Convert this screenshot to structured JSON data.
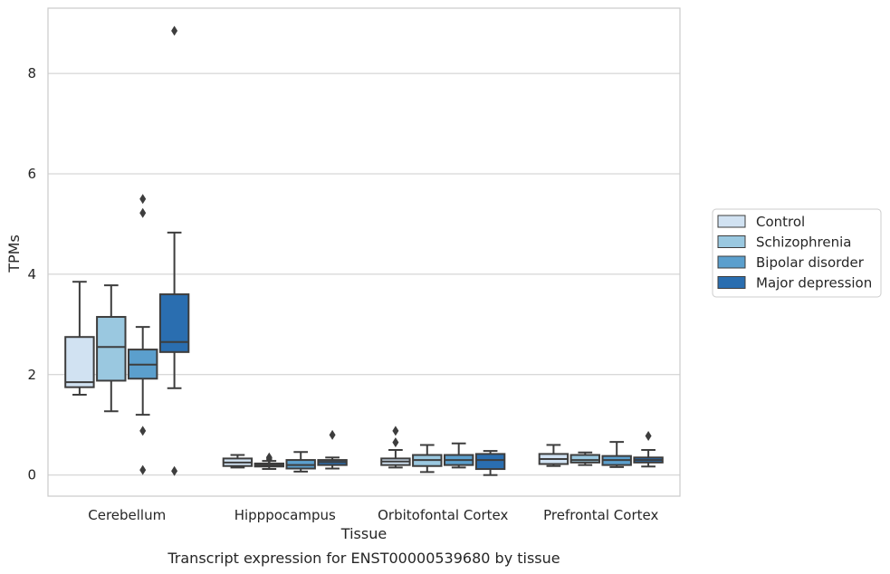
{
  "chart_data": {
    "type": "box",
    "caption": "Transcript expression for ENST00000539680 by tissue",
    "xlabel": "Tissue",
    "ylabel": "TPMs",
    "ylim": [
      -0.42,
      9.3
    ],
    "yticks": [
      0,
      2,
      4,
      6,
      8
    ],
    "grid": "horizontal",
    "legend_position": "right",
    "categories": [
      "Cerebellum",
      "Hipppocampus",
      "Orbitofontal Cortex",
      "Prefrontal Cortex"
    ],
    "series": [
      {
        "name": "Control",
        "color": "#d1e2f2",
        "boxes": [
          {
            "whislo": 1.6,
            "q1": 1.75,
            "med": 1.85,
            "q3": 2.75,
            "whishi": 3.85,
            "fliers": []
          },
          {
            "whislo": 0.15,
            "q1": 0.18,
            "med": 0.25,
            "q3": 0.33,
            "whishi": 0.4,
            "fliers": []
          },
          {
            "whislo": 0.15,
            "q1": 0.2,
            "med": 0.27,
            "q3": 0.33,
            "whishi": 0.5,
            "fliers": [
              0.65,
              0.88
            ]
          },
          {
            "whislo": 0.18,
            "q1": 0.22,
            "med": 0.32,
            "q3": 0.42,
            "whishi": 0.6,
            "fliers": []
          }
        ]
      },
      {
        "name": "Schizophrenia",
        "color": "#9ac8e0",
        "boxes": [
          {
            "whislo": 1.27,
            "q1": 1.88,
            "med": 2.55,
            "q3": 3.15,
            "whishi": 3.78,
            "fliers": []
          },
          {
            "whislo": 0.12,
            "q1": 0.17,
            "med": 0.2,
            "q3": 0.23,
            "whishi": 0.28,
            "fliers": [
              0.35,
              0.32
            ]
          },
          {
            "whislo": 0.06,
            "q1": 0.18,
            "med": 0.3,
            "q3": 0.4,
            "whishi": 0.6,
            "fliers": []
          },
          {
            "whislo": 0.2,
            "q1": 0.25,
            "med": 0.3,
            "q3": 0.4,
            "whishi": 0.45,
            "fliers": []
          }
        ]
      },
      {
        "name": "Bipolar disorder",
        "color": "#5b9fcd",
        "boxes": [
          {
            "whislo": 1.2,
            "q1": 1.92,
            "med": 2.2,
            "q3": 2.5,
            "whishi": 2.95,
            "fliers": [
              0.88,
              0.1,
              5.5,
              5.22
            ]
          },
          {
            "whislo": 0.07,
            "q1": 0.13,
            "med": 0.2,
            "q3": 0.3,
            "whishi": 0.46,
            "fliers": []
          },
          {
            "whislo": 0.15,
            "q1": 0.2,
            "med": 0.3,
            "q3": 0.4,
            "whishi": 0.63,
            "fliers": []
          },
          {
            "whislo": 0.16,
            "q1": 0.2,
            "med": 0.3,
            "q3": 0.38,
            "whishi": 0.66,
            "fliers": []
          }
        ]
      },
      {
        "name": "Major depression",
        "color": "#2a6eb0",
        "boxes": [
          {
            "whislo": 1.73,
            "q1": 2.45,
            "med": 2.65,
            "q3": 3.6,
            "whishi": 4.83,
            "fliers": [
              0.08,
              8.85
            ]
          },
          {
            "whislo": 0.13,
            "q1": 0.2,
            "med": 0.26,
            "q3": 0.3,
            "whishi": 0.35,
            "fliers": [
              0.8
            ]
          },
          {
            "whislo": 0.0,
            "q1": 0.12,
            "med": 0.3,
            "q3": 0.42,
            "whishi": 0.48,
            "fliers": []
          },
          {
            "whislo": 0.17,
            "q1": 0.25,
            "med": 0.3,
            "q3": 0.35,
            "whishi": 0.5,
            "fliers": [
              0.78
            ]
          }
        ]
      }
    ]
  }
}
